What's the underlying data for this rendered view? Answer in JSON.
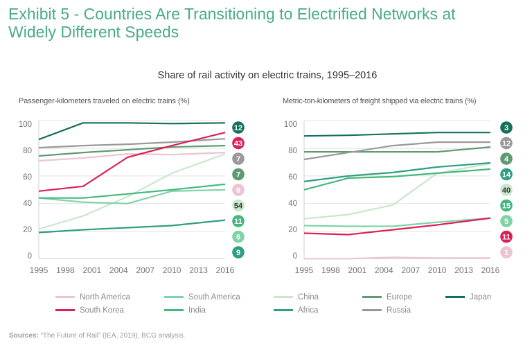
{
  "header": {
    "title_lines": [
      "Exhibit 5 - Countries Are Transitioning to Electrified Networks at",
      "Widely Different Speeds"
    ],
    "accent_color": "#4aab8b"
  },
  "suptitle": "Share of rail activity on electric trains, 1995–2016",
  "chart_data": [
    {
      "type": "line",
      "title": "Passenger-kilometers traveled on electric trains (%)",
      "xlabel": "",
      "ylabel": "",
      "x": [
        1995,
        2000,
        2005,
        2010,
        2016
      ],
      "xlim": [
        1995,
        2016
      ],
      "ylim": [
        0,
        100
      ],
      "x_ticks": [
        "1995",
        "1998",
        "2001",
        "2004",
        "2007",
        "2010",
        "2013",
        "2016"
      ],
      "y_ticks": [
        "0",
        "20",
        "40",
        "60",
        "80",
        "100"
      ],
      "grid": true,
      "legend": "bottom",
      "series": [
        {
          "name": "North America",
          "color": "#ecc5d3",
          "badge": "6",
          "badge_text_color": "#ffffff",
          "values": [
            71,
            73,
            76,
            75.5,
            77
          ]
        },
        {
          "name": "South America",
          "color": "#7fd3a6",
          "badge": "6",
          "badge_text_color": "#ffffff",
          "values": [
            44,
            41,
            40,
            49,
            50
          ]
        },
        {
          "name": "China",
          "color": "#c9e7cc",
          "badge": "54",
          "badge_text_color": "#3a3a3a",
          "values": [
            21.5,
            31,
            45,
            62,
            76
          ]
        },
        {
          "name": "Europe",
          "color": "#5f9b72",
          "badge": "7",
          "badge_text_color": "#ffffff",
          "values": [
            74.5,
            77,
            79,
            81,
            82
          ]
        },
        {
          "name": "Japan",
          "color": "#14705e",
          "badge": "12",
          "badge_text_color": "#ffffff",
          "values": [
            86.5,
            98.5,
            98.5,
            98,
            98.5
          ]
        },
        {
          "name": "South Korea",
          "color": "#dc1f5a",
          "badge": "43",
          "badge_text_color": "#ffffff",
          "values": [
            49,
            52.5,
            73.5,
            82,
            91.5
          ]
        },
        {
          "name": "India",
          "color": "#42b97b",
          "badge": "11",
          "badge_text_color": "#ffffff",
          "values": [
            44,
            44,
            47,
            50,
            54
          ]
        },
        {
          "name": "Africa",
          "color": "#2f9e82",
          "badge": "9",
          "badge_text_color": "#ffffff",
          "values": [
            19,
            21,
            22.5,
            24,
            28
          ]
        },
        {
          "name": "Russia",
          "color": "#999999",
          "badge": "7",
          "badge_text_color": "#ffffff",
          "values": [
            80.5,
            82,
            83,
            84.5,
            87
          ]
        }
      ],
      "badge_order": [
        "Japan",
        "South Korea",
        "Russia",
        "Europe",
        "North America",
        "China",
        "India",
        "South America",
        "Africa"
      ]
    },
    {
      "type": "line",
      "title": "Metric-ton-kilometers of freight shipped via electric trains (%)",
      "xlabel": "",
      "ylabel": "",
      "x": [
        1995,
        2000,
        2005,
        2010,
        2016
      ],
      "xlim": [
        1995,
        2016
      ],
      "ylim": [
        0,
        100
      ],
      "x_ticks": [
        "1995",
        "1998",
        "2001",
        "2004",
        "2007",
        "2010",
        "2013",
        "2016"
      ],
      "y_ticks": [
        "0",
        "20",
        "40",
        "60",
        "80",
        "100"
      ],
      "grid": true,
      "legend": "bottom",
      "series": [
        {
          "name": "North America",
          "color": "#ecc5d3",
          "badge": "1",
          "badge_text_color": "#ffffff",
          "values": [
            0,
            0,
            1,
            0.5,
            0.5
          ]
        },
        {
          "name": "South America",
          "color": "#7fd3a6",
          "badge": "5",
          "badge_text_color": "#ffffff",
          "values": [
            24,
            23.5,
            23.5,
            26.5,
            29.5
          ]
        },
        {
          "name": "China",
          "color": "#c9e7cc",
          "badge": "40",
          "badge_text_color": "#3a3a3a",
          "values": [
            29,
            32,
            39,
            62,
            69
          ]
        },
        {
          "name": "Europe",
          "color": "#5f9b72",
          "badge": "4",
          "badge_text_color": "#ffffff",
          "values": [
            77.5,
            77.5,
            77.5,
            77.5,
            81
          ]
        },
        {
          "name": "Japan",
          "color": "#14705e",
          "badge": "3",
          "badge_text_color": "#ffffff",
          "values": [
            89,
            89.5,
            90.5,
            91.5,
            91.5
          ]
        },
        {
          "name": "South Korea",
          "color": "#dc1f5a",
          "badge": "11",
          "badge_text_color": "#ffffff",
          "values": [
            18.5,
            17.5,
            21,
            24.5,
            29.5
          ]
        },
        {
          "name": "India",
          "color": "#42b97b",
          "badge": "15",
          "badge_text_color": "#ffffff",
          "values": [
            50,
            58.5,
            59.5,
            62,
            65
          ]
        },
        {
          "name": "Africa",
          "color": "#2f9e82",
          "badge": "14",
          "badge_text_color": "#ffffff",
          "values": [
            56,
            60,
            62.5,
            66.5,
            69.5
          ]
        },
        {
          "name": "Russia",
          "color": "#999999",
          "badge": "12",
          "badge_text_color": "#ffffff",
          "values": [
            72,
            77,
            82,
            84.5,
            84.5
          ]
        }
      ],
      "badge_order": [
        "Japan",
        "Russia",
        "Europe",
        "Africa",
        "China",
        "India",
        "South America",
        "South Korea",
        "North America"
      ]
    }
  ],
  "legend": {
    "position": "bottom",
    "items": [
      {
        "label": "North America",
        "color": "#ecc5d3"
      },
      {
        "label": "South America",
        "color": "#7fd3a6"
      },
      {
        "label": "China",
        "color": "#c9e7cc"
      },
      {
        "label": "Europe",
        "color": "#5f9b72"
      },
      {
        "label": "Japan",
        "color": "#14705e"
      },
      {
        "label": "South Korea",
        "color": "#dc1f5a"
      },
      {
        "label": "India",
        "color": "#42b97b"
      },
      {
        "label": "Africa",
        "color": "#2f9e82"
      },
      {
        "label": "Russia",
        "color": "#999999"
      }
    ]
  },
  "sources": {
    "label": "Sources:",
    "text": " “The Future of Rail” (IEA, 2019); BCG analysis."
  }
}
